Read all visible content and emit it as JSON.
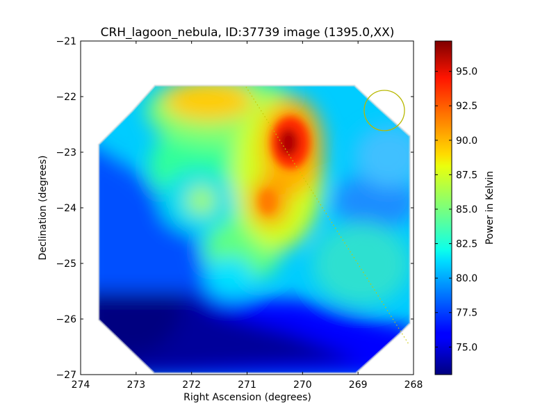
{
  "chart_data": {
    "type": "heatmap",
    "title": "CRH_lagoon_nebula, ID:37739 image (1395.0,XX)",
    "xlabel": "Right Ascension (degrees)",
    "ylabel": "Declination (degrees)",
    "xlim": [
      274,
      268
    ],
    "ylim": [
      -27,
      -21
    ],
    "x_ticks": [
      "274",
      "273",
      "272",
      "271",
      "270",
      "269",
      "268"
    ],
    "y_ticks": [
      "−21",
      "−22",
      "−23",
      "−24",
      "−25",
      "−26",
      "−27"
    ],
    "x_tick_values": [
      274,
      273,
      272,
      271,
      270,
      269,
      268
    ],
    "y_tick_values": [
      -21,
      -22,
      -23,
      -24,
      -25,
      -26,
      -27
    ],
    "colorbar": {
      "label": "Power in Kelvin",
      "range": [
        73.0,
        97.2
      ],
      "ticks": [
        "75.0",
        "77.5",
        "80.0",
        "82.5",
        "85.0",
        "87.5",
        "90.0",
        "92.5",
        "95.0"
      ],
      "tick_values": [
        75.0,
        77.5,
        80.0,
        82.5,
        85.0,
        87.5,
        90.0,
        92.5,
        95.0
      ],
      "colormap": "jet"
    },
    "map_values": {
      "description_units": "Kelvin",
      "background": 80.0,
      "features": [
        {
          "ra": 270.3,
          "dec": -22.85,
          "peak": 96.5
        },
        {
          "ra": 271.6,
          "dec": -22.1,
          "peak": 90.5
        },
        {
          "ra": 270.8,
          "dec": -24.0,
          "peak": 91.0
        },
        {
          "ra": 271.8,
          "dec": -23.85,
          "peak": 87.5
        },
        {
          "ra": 271.2,
          "dec": -25.1,
          "peak": 84.0
        },
        {
          "ra": 273.4,
          "dec": -26.3,
          "peak": 73.0
        },
        {
          "ra": 269.2,
          "dec": -24.0,
          "peak": 77.5
        }
      ]
    },
    "overlays": [
      {
        "type": "circle",
        "ra": 268.5,
        "dec": -22.27,
        "radius_deg": 0.36,
        "color": "#b8b800"
      },
      {
        "type": "dotted-line",
        "from": [
          270.9,
          -21.85
        ],
        "to": [
          268.1,
          -26.45
        ],
        "color": "#c8c800"
      }
    ]
  }
}
